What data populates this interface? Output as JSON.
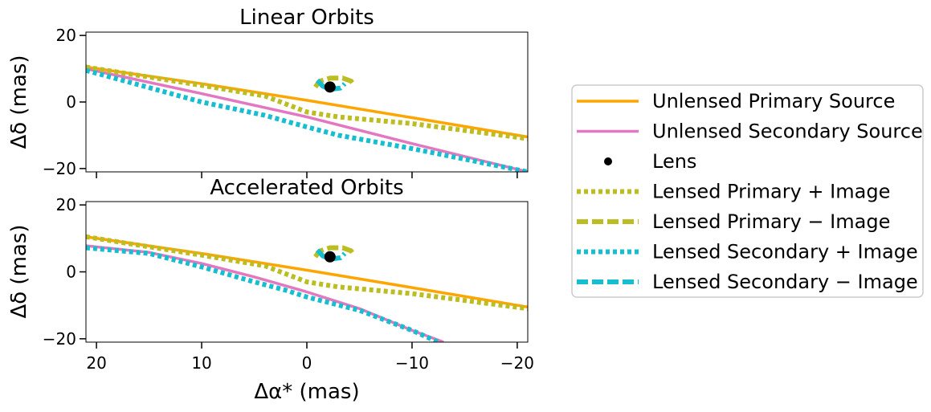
{
  "chart_data": [
    {
      "type": "line",
      "title": "Linear Orbits",
      "xlabel": "",
      "ylabel": "Δδ (mas)",
      "xlim": [
        21,
        -21
      ],
      "ylim": [
        -21,
        21
      ],
      "xticks": [
        20,
        10,
        0,
        -10,
        -20
      ],
      "yticks": [
        20,
        0,
        -20
      ],
      "yticklabels": [
        "20",
        "0",
        "−20"
      ],
      "lens": {
        "x": -2.2,
        "y": 4.5
      },
      "series": [
        {
          "name": "Unlensed Primary Source",
          "color": "#ffa500",
          "style": "solid",
          "x": [
            21,
            10,
            0,
            -10,
            -21
          ],
          "y": [
            10.5,
            5.5,
            0.5,
            -4.7,
            -10.5
          ]
        },
        {
          "name": "Unlensed Secondary Source",
          "color": "#e377c2",
          "style": "solid",
          "x": [
            21,
            10,
            0,
            -10,
            -21
          ],
          "y": [
            10.0,
            2.5,
            -4.5,
            -12.5,
            -21.0
          ]
        },
        {
          "name": "Lensed Primary + Image",
          "color": "#bcbd22",
          "style": "dotted",
          "x": [
            21,
            10,
            4,
            0,
            -3,
            -10,
            -21
          ],
          "y": [
            10.5,
            5.0,
            1.8,
            -3.0,
            -4.5,
            -6.5,
            -11.0
          ]
        },
        {
          "name": "Lensed Secondary + Image",
          "color": "#17becf",
          "style": "dotted",
          "x": [
            21,
            10,
            4,
            0,
            -3,
            -10,
            -21
          ],
          "y": [
            9.5,
            0.0,
            -4.0,
            -7.5,
            -10.0,
            -14.0,
            -21.0
          ]
        },
        {
          "name": "Lensed Primary − Image",
          "color": "#bcbd22",
          "style": "dashed",
          "x": [
            -0.8,
            -1.2,
            -2.2,
            -3.4,
            -4.2,
            -4.5
          ],
          "y": [
            4.5,
            6.2,
            7.2,
            7.2,
            6.3,
            5.0
          ]
        },
        {
          "name": "Lensed Secondary − Image",
          "color": "#17becf",
          "style": "dashed",
          "x": [
            -1.0,
            -1.5,
            -2.2,
            -3.2,
            -3.6
          ],
          "y": [
            6.5,
            4.8,
            3.8,
            4.2,
            5.5
          ]
        }
      ]
    },
    {
      "type": "line",
      "title": "Accelerated Orbits",
      "xlabel": "Δα* (mas)",
      "ylabel": "Δδ (mas)",
      "xlim": [
        21,
        -21
      ],
      "ylim": [
        -21,
        21
      ],
      "xticks": [
        20,
        10,
        0,
        -10,
        -20
      ],
      "xticklabels": [
        "20",
        "10",
        "0",
        "−10",
        "−20"
      ],
      "yticks": [
        20,
        0,
        -20
      ],
      "yticklabels": [
        "20",
        "0",
        "−20"
      ],
      "lens": {
        "x": -2.2,
        "y": 4.5
      },
      "series": [
        {
          "name": "Unlensed Primary Source",
          "color": "#ffa500",
          "style": "solid",
          "x": [
            21,
            10,
            0,
            -10,
            -21
          ],
          "y": [
            10.5,
            5.5,
            0.5,
            -4.7,
            -10.5
          ]
        },
        {
          "name": "Unlensed Secondary Source",
          "color": "#e377c2",
          "style": "solid",
          "x": [
            21,
            15,
            10,
            5,
            0,
            -5,
            -10,
            -13
          ],
          "y": [
            7.8,
            5.8,
            2.5,
            -1.5,
            -6.0,
            -11.0,
            -17.5,
            -21.0
          ]
        },
        {
          "name": "Lensed Primary + Image",
          "color": "#bcbd22",
          "style": "dotted",
          "x": [
            21,
            10,
            4,
            0,
            -3,
            -10,
            -21
          ],
          "y": [
            10.5,
            5.0,
            1.8,
            -3.0,
            -4.5,
            -6.5,
            -11.0
          ]
        },
        {
          "name": "Lensed Secondary + Image",
          "color": "#17becf",
          "style": "dotted",
          "x": [
            21,
            15,
            10,
            5,
            2,
            0,
            -5,
            -10,
            -12.5
          ],
          "y": [
            7.2,
            5.5,
            1.5,
            -3.0,
            -5.5,
            -7.5,
            -11.5,
            -17.5,
            -21.0
          ]
        },
        {
          "name": "Lensed Primary − Image",
          "color": "#bcbd22",
          "style": "dashed",
          "x": [
            -0.8,
            -1.2,
            -2.2,
            -3.4,
            -4.2,
            -4.5
          ],
          "y": [
            4.5,
            6.2,
            7.2,
            7.2,
            6.3,
            5.0
          ]
        },
        {
          "name": "Lensed Secondary − Image",
          "color": "#17becf",
          "style": "dashed",
          "x": [
            -1.0,
            -1.5,
            -2.2,
            -3.2,
            -3.6
          ],
          "y": [
            6.5,
            4.8,
            3.8,
            4.2,
            5.5
          ]
        }
      ]
    }
  ],
  "legend": {
    "placement": "right",
    "items": [
      {
        "label": "Unlensed Primary Source",
        "color": "#ffa500",
        "style": "solid"
      },
      {
        "label": "Unlensed Secondary Source",
        "color": "#e377c2",
        "style": "solid"
      },
      {
        "label": "Lens",
        "color": "#000000",
        "style": "marker"
      },
      {
        "label": "Lensed Primary + Image",
        "color": "#bcbd22",
        "style": "dotted"
      },
      {
        "label": "Lensed Primary − Image",
        "color": "#bcbd22",
        "style": "dashed"
      },
      {
        "label": "Lensed Secondary + Image",
        "color": "#17becf",
        "style": "dotted"
      },
      {
        "label": "Lensed Secondary − Image",
        "color": "#17becf",
        "style": "dashed"
      }
    ]
  }
}
